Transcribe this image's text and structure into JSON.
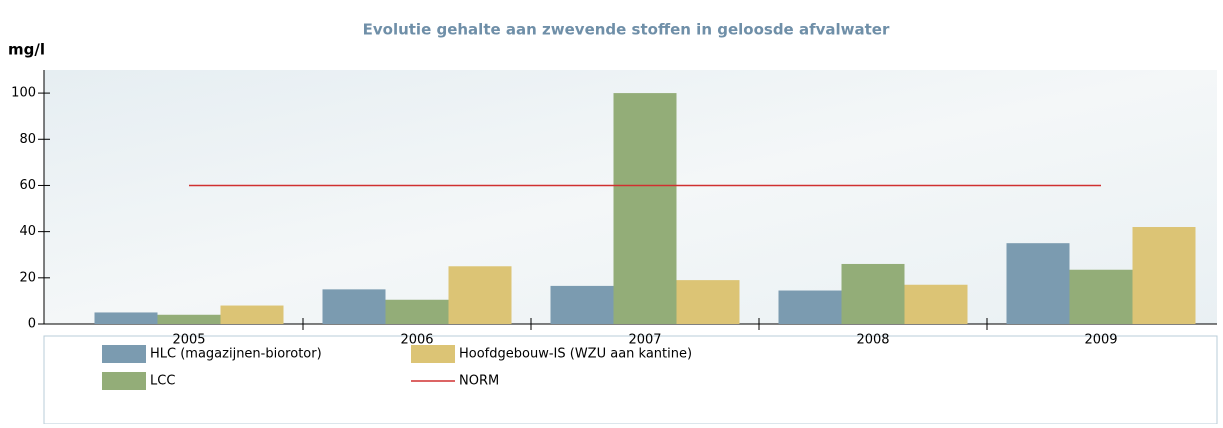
{
  "chart_data": {
    "type": "bar",
    "title": "Evolutie gehalte aan zwevende stoffen in geloosde afvalwater",
    "y_label": "mg/l",
    "categories": [
      "2005",
      "2006",
      "2007",
      "2008",
      "2009"
    ],
    "series": [
      {
        "name": "HLC (magazijnen-biorotor)",
        "color": "#7b9bb0",
        "values": [
          5,
          15,
          16.5,
          14.5,
          35
        ]
      },
      {
        "name": "LCC",
        "color": "#93ad78",
        "values": [
          4,
          10.5,
          100,
          26,
          23.5
        ]
      },
      {
        "name": "Hoofdgebouw-IS (WZU aan kantine)",
        "color": "#dcc475",
        "values": [
          8,
          25,
          19,
          17,
          42
        ]
      }
    ],
    "reference_line": {
      "name": "NORM",
      "value": 60,
      "color": "#d03030"
    },
    "ylim": [
      0,
      110
    ],
    "yticks": [
      0,
      20,
      40,
      60,
      80,
      100
    ],
    "grid": false
  }
}
